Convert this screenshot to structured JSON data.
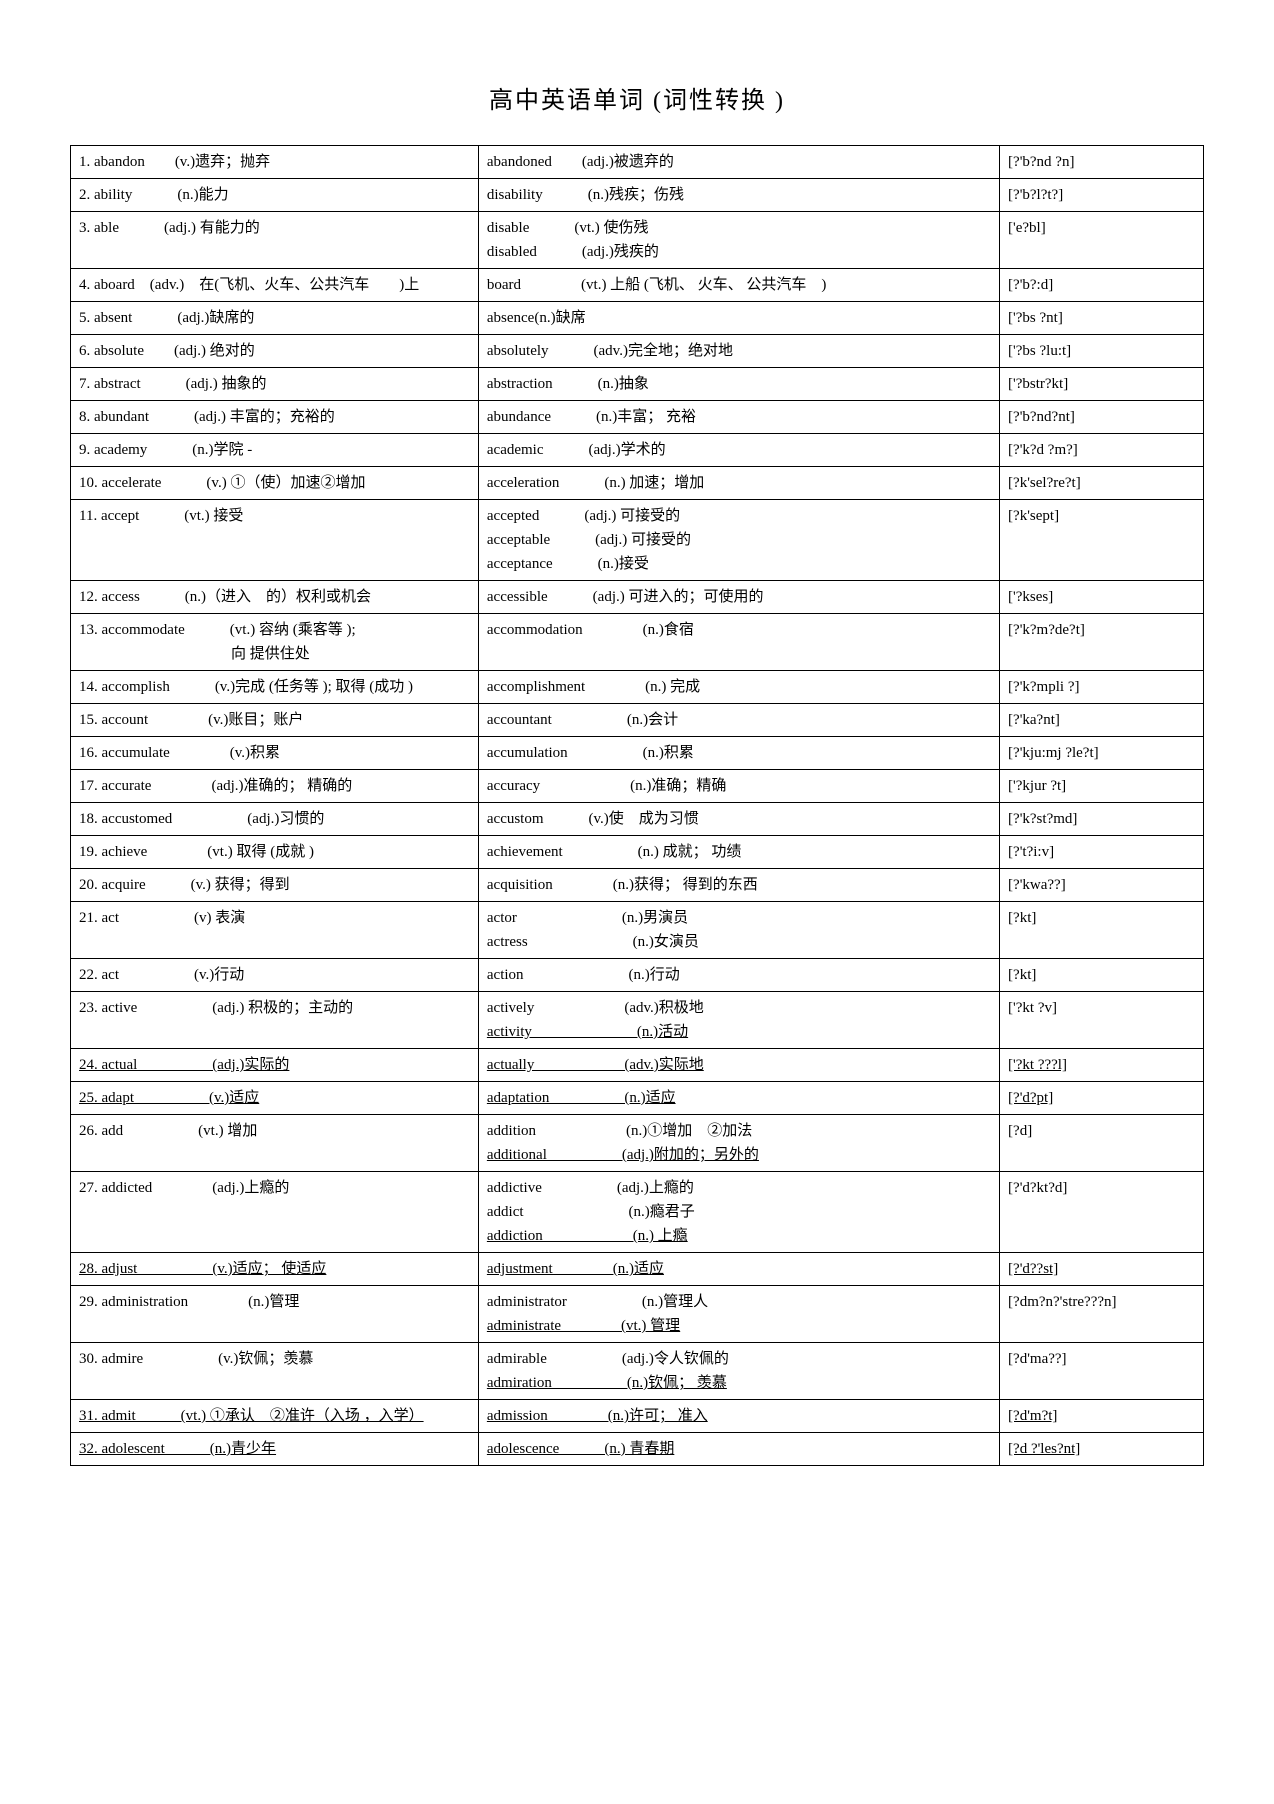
{
  "title": "高中英语单词 (词性转换 )",
  "rows": [
    {
      "c1": "1. abandon　　(v.)遗弃；抛弃",
      "c2": "abandoned　　(adj.)被遗弃的",
      "c3": "[?'b?nd ?n]"
    },
    {
      "c1": "2. ability　　　(n.)能力",
      "c2": "disability　　　(n.)残疾；伤残",
      "c3": "[?'b?l?t?]"
    },
    {
      "c1": "3. able　　　(adj.) 有能力的",
      "c2": [
        "disable　　　(vt.) 使伤残",
        "disabled　　　(adj.)残疾的"
      ],
      "c3": "['e?bl]"
    },
    {
      "c1": "4. aboard　(adv.)　在(飞机、火车、公共汽车　　)上",
      "c2": "board　　　　(vt.) 上船 (飞机、 火车、 公共汽车　)",
      "c3": "[?'b?:d]"
    },
    {
      "c1": "5. absent　　　(adj.)缺席的",
      "c2": "absence(n.)缺席",
      "c3": "['?bs ?nt]"
    },
    {
      "c1": "6. absolute　　(adj.) 绝对的",
      "c2": "absolutely　　　(adv.)完全地；绝对地",
      "c3": "['?bs ?lu:t]"
    },
    {
      "c1": "7. abstract　　　(adj.) 抽象的",
      "c2": "abstraction　　　(n.)抽象",
      "c3": "['?bstr?kt]"
    },
    {
      "c1": "8. abundant　　　(adj.) 丰富的；充裕的",
      "c2": "abundance　　　(n.)丰富； 充裕",
      "c3": "[?'b?nd?nt]"
    },
    {
      "c1": "9. academy　　　(n.)学院 -",
      "c2": "academic　　　(adj.)学术的",
      "c3": "[?'k?d ?m?]"
    },
    {
      "c1": "10. accelerate　　　(v.) ①（使）加速②增加",
      "c2": "acceleration　　　(n.) 加速；增加",
      "c3": "[?k'sel?re?t]"
    },
    {
      "c1": "11. accept　　　(vt.) 接受",
      "c2": [
        "accepted　　　(adj.) 可接受的",
        "acceptable　　　(adj.) 可接受的",
        "acceptance　　　(n.)接受"
      ],
      "c3": "[?k'sept]"
    },
    {
      "c1": "12. access　　　(n.)（进入　的）权利或机会",
      "c2": "accessible　　　(adj.) 可进入的；可使用的",
      "c3": "['?kses]"
    },
    {
      "c1": [
        "13. accommodate　　　(vt.) 容纳 (乘客等 );",
        "<span class=\"indent-def\">向 提供住处</span>"
      ],
      "c2": "accommodation　　　　(n.)食宿",
      "c3": "[?'k?m?de?t]"
    },
    {
      "c1": "14. accomplish　　　(v.)完成 (任务等 ); 取得 (成功 )",
      "c2": "accomplishment　　　　(n.) 完成",
      "c3": "[?'k?mpli ?]"
    },
    {
      "c1": "15. account　　　　(v.)账目；账户",
      "c2": "accountant　　　　　(n.)会计",
      "c3": "[?'ka?nt]"
    },
    {
      "c1": "16. accumulate　　　　(v.)积累",
      "c2": "accumulation　　　　　(n.)积累",
      "c3": "[?'kju:mj ?le?t]"
    },
    {
      "c1": "17. accurate　　　　(adj.)准确的； 精确的",
      "c2": "accuracy　　　　　　(n.)准确；精确",
      "c3": "['?kjur ?t]"
    },
    {
      "c1": "18. accustomed　　　　　(adj.)习惯的",
      "c2": "accustom　　　(v.)使　成为习惯",
      "c3": "[?'k?st?md]"
    },
    {
      "c1": "19. achieve　　　　(vt.) 取得 (成就 )",
      "c2": "achievement　　　　　(n.) 成就； 功绩",
      "c3": "[?'t?i:v]"
    },
    {
      "c1": "20. acquire　　　(v.) 获得；得到",
      "c2": "acquisition　　　　(n.)获得； 得到的东西",
      "c3": "[?'kwa??]"
    },
    {
      "c1": "21. act　　　　　(v) 表演",
      "c2": [
        "actor　　　　　　　(n.)男演员",
        "actress　　　　　　　(n.)女演员"
      ],
      "c3": "[?kt]"
    },
    {
      "c1": "22. act　　　　　(v.)行动",
      "c2": "action　　　　　　　(n.)行动",
      "c3": "[?kt]"
    },
    {
      "c1": "23. active　　　　　(adj.) 积极的；主动的",
      "c2": [
        "actively　　　　　　(adv.)积极地",
        "<span class=\"u\">activity　　　　　　　(n.)活动</span>"
      ],
      "c3": "['?kt ?v]"
    },
    {
      "c1": "<span class=\"u\">24. actual　　　　　(adj.)实际的</span>",
      "c2": "<span class=\"u\">actually　　　　　　(adv.)实际地</span>",
      "c3": "<span class=\"u\">['?kt ???l]</span>"
    },
    {
      "c1": "<span class=\"u\">25. adapt　　　　　(v.)适应</span>",
      "c2": "<span class=\"u\">adaptation　　　　　(n.)适应</span>",
      "c3": "<span class=\"u\">[?'d?pt]</span>"
    },
    {
      "c1": "26. add　　　　　(vt.) 增加",
      "c2": [
        "addition　　　　　　(n.)①增加　②加法",
        "<span class=\"u\">additional　　　　　(adj.)附加的；另外的</span>"
      ],
      "c3": "[?d]"
    },
    {
      "c1": "27. addicted　　　　(adj.)上瘾的",
      "c2": [
        "addictive　　　　　(adj.)上瘾的",
        "addict　　　　　　　(n.)瘾君子",
        "<span class=\"u\">addiction　　　　　　(n.) 上瘾</span>"
      ],
      "c3": "[?'d?kt?d]"
    },
    {
      "c1": "<span class=\"u\">28. adjust　　　　　(v.)适应； 使适应</span>",
      "c2": "<span class=\"u\">adjustment　　　　(n.)适应</span>",
      "c3": "<span class=\"u\">[?'d??st]</span>"
    },
    {
      "c1": "29. administration　　　　(n.)管理",
      "c2": [
        "administrator　　　　　(n.)管理人",
        "<span class=\"u\">administrate　　　　(vt.) 管理</span>"
      ],
      "c3": "[?dm?n?'stre???n]"
    },
    {
      "c1": "30. admire　　　　　(v.)钦佩；羡慕",
      "c2": [
        "admirable　　　　　(adj.)令人钦佩的",
        "<span class=\"u\">admiration　　　　　(n.)钦佩； 羡慕</span>"
      ],
      "c3": "[?d'ma??]"
    },
    {
      "c1": "<span class=\"u\">31. admit　　　(vt.) ①承认　②准许（入场 ，入学）</span>",
      "c2": "<span class=\"u\">admission　　　　(n.)许可； 准入</span>",
      "c3": "<span class=\"u\">[?d'm?t]</span>"
    },
    {
      "c1": "<span class=\"u\">32. adolescent　　　(n.)青少年</span>",
      "c2": "<span class=\"u\">adolescence　　　(n.) 青春期</span>",
      "c3": "<span class=\"u\">[?d ?'les?nt]</span>"
    }
  ]
}
